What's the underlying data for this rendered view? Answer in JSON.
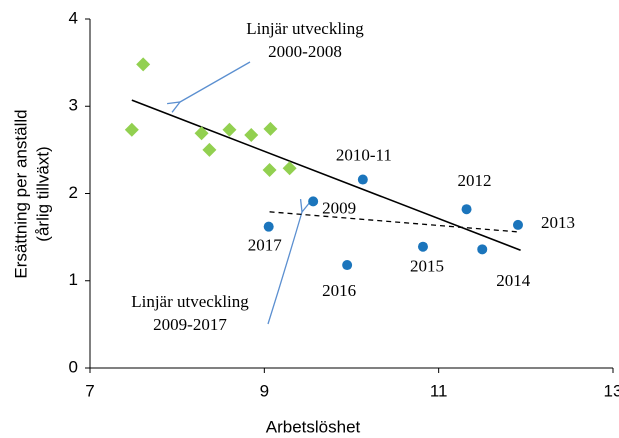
{
  "chart_data": {
    "type": "scatter",
    "x_label": "Arbetslöshet",
    "y_label": [
      "Ersättning per anställd",
      "(årlig tillväxt)"
    ],
    "xlim": [
      7,
      13
    ],
    "xticks": [
      7,
      9,
      11,
      13
    ],
    "ylim": [
      0,
      4
    ],
    "yticks": [
      0,
      1,
      2,
      3,
      4
    ],
    "series": [
      {
        "color": "#92d050",
        "marker": "diamond",
        "x": [
          7.48,
          7.61,
          8.28,
          8.37,
          8.6,
          8.85,
          9.07,
          9.06,
          9.29
        ],
        "values": [
          2.73,
          3.48,
          2.69,
          2.5,
          2.73,
          2.67,
          2.74,
          2.27,
          2.29
        ]
      },
      {
        "color": "#1b75bc",
        "marker": "circle",
        "x": [
          9.05,
          9.56,
          9.95,
          10.13,
          10.82,
          11.32,
          11.5,
          11.91
        ],
        "values": [
          1.62,
          1.91,
          1.18,
          2.16,
          1.39,
          1.82,
          1.36,
          1.64
        ],
        "labels": [
          "2017",
          "2009",
          "2016",
          "2010-11",
          "2015",
          "2012",
          "2014",
          "2013"
        ]
      }
    ],
    "trend_lines": [
      {
        "style": "solid",
        "x": [
          7.48,
          11.94
        ],
        "values": [
          3.07,
          1.35
        ]
      },
      {
        "style": "dashed",
        "x": [
          9.06,
          11.91
        ],
        "values": [
          1.79,
          1.56
        ]
      }
    ],
    "annotations": [
      [
        "Linjär utveckling",
        "2000-2008"
      ],
      [
        "Linjär utveckling",
        "2009-2017"
      ]
    ]
  }
}
